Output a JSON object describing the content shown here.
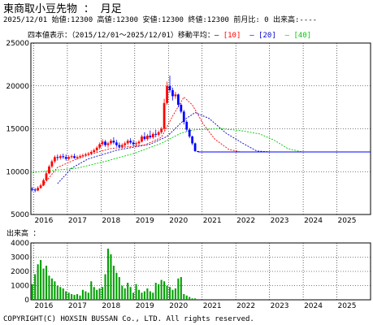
{
  "header": {
    "title": "東商取小豆先物 ： 月足",
    "quote_line": "2025/12/01 始値:12300 高値:12300 安値:12300 終値:12300 前月比: 0 出来高:----"
  },
  "legend": {
    "prefix": "四本値表示：（2015/12/01〜2025/12/01）移動平均：",
    "ma10": "[10]",
    "ma20": "[20]",
    "ma40": "[40]"
  },
  "volume_label": "出来高 ：",
  "copyright": "COPYRIGHT(C) HOXSIN BUSSAN Co., LTD. All rights reserved.",
  "colors": {
    "up": "#ff0000",
    "down": "#0000ff",
    "ma10": "#ff0000",
    "ma20": "#0000cc",
    "ma40": "#00cc00",
    "volume": "#00a000",
    "grid": "#000000"
  },
  "chart_data": [
    {
      "type": "candlestick",
      "title": "東商取小豆先物 月足",
      "x_start": "2015-12",
      "x_ticks": [
        "2016",
        "2017",
        "2018",
        "2019",
        "2020",
        "2021",
        "2022",
        "2023",
        "2024",
        "2025"
      ],
      "ylim": [
        5000,
        25000
      ],
      "yticks": [
        5000,
        10000,
        15000,
        20000,
        25000
      ],
      "grid": "dotted",
      "candles": [
        [
          8000,
          8200,
          7700,
          7900
        ],
        [
          7900,
          8100,
          7600,
          7800
        ],
        [
          7800,
          8300,
          7700,
          8100
        ],
        [
          8100,
          8600,
          8000,
          8400
        ],
        [
          8400,
          9200,
          8300,
          9000
        ],
        [
          9000,
          10000,
          8900,
          9800
        ],
        [
          9800,
          10800,
          9700,
          10600
        ],
        [
          10600,
          11400,
          10400,
          11200
        ],
        [
          11200,
          11900,
          11000,
          11700
        ],
        [
          11700,
          12000,
          11300,
          11600
        ],
        [
          11600,
          12000,
          11400,
          11800
        ],
        [
          11800,
          12100,
          11500,
          11700
        ],
        [
          11700,
          12000,
          11300,
          11500
        ],
        [
          11500,
          11900,
          11300,
          11700
        ],
        [
          11700,
          12000,
          11500,
          11800
        ],
        [
          11800,
          12100,
          11500,
          11600
        ],
        [
          11600,
          11900,
          11400,
          11700
        ],
        [
          11700,
          12000,
          11500,
          11800
        ],
        [
          11800,
          12100,
          11600,
          11900
        ],
        [
          11900,
          12200,
          11700,
          12000
        ],
        [
          12000,
          12300,
          11800,
          12100
        ],
        [
          12100,
          12500,
          11900,
          12300
        ],
        [
          12300,
          12700,
          12100,
          12500
        ],
        [
          12500,
          13000,
          12300,
          12800
        ],
        [
          12800,
          13400,
          12600,
          13200
        ],
        [
          13200,
          13800,
          13000,
          13500
        ],
        [
          13500,
          13700,
          12900,
          13100
        ],
        [
          13100,
          13500,
          12800,
          13300
        ],
        [
          13300,
          13800,
          13100,
          13600
        ],
        [
          13600,
          14000,
          13200,
          13400
        ],
        [
          13400,
          13700,
          12900,
          13100
        ],
        [
          13100,
          13400,
          12700,
          12900
        ],
        [
          12900,
          13300,
          12700,
          13100
        ],
        [
          13100,
          13500,
          12900,
          13300
        ],
        [
          13300,
          13800,
          13100,
          13600
        ],
        [
          13600,
          13900,
          13200,
          13400
        ],
        [
          13400,
          13700,
          13000,
          13200
        ],
        [
          13200,
          13500,
          12900,
          13300
        ],
        [
          13300,
          13700,
          13100,
          13500
        ],
        [
          13500,
          14300,
          13400,
          14100
        ],
        [
          14100,
          14600,
          13600,
          13800
        ],
        [
          13800,
          14400,
          13600,
          14200
        ],
        [
          14200,
          14800,
          13800,
          14000
        ],
        [
          14000,
          14600,
          13800,
          14400
        ],
        [
          14400,
          14900,
          14000,
          14300
        ],
        [
          14300,
          14800,
          14100,
          14600
        ],
        [
          14600,
          15200,
          14400,
          15000
        ],
        [
          15000,
          18500,
          14800,
          18000
        ],
        [
          18000,
          20500,
          17800,
          20000
        ],
        [
          20000,
          21200,
          19200,
          19500
        ],
        [
          19500,
          19800,
          18300,
          18800
        ],
        [
          18800,
          19300,
          18500,
          19000
        ],
        [
          19000,
          19100,
          17500,
          17800
        ],
        [
          17800,
          18000,
          16800,
          17000
        ],
        [
          17000,
          17200,
          15500,
          15800
        ],
        [
          15800,
          16000,
          14700,
          14900
        ],
        [
          14900,
          15100,
          13900,
          14100
        ],
        [
          14100,
          14200,
          13100,
          13300
        ],
        [
          13300,
          13400,
          12300,
          12400
        ],
        [
          12400,
          12400,
          12300,
          12300
        ]
      ],
      "flat_from_month": 59,
      "flat_value": 12300,
      "months_total": 121,
      "ma10": [
        [
          3,
          8100
        ],
        [
          9,
          10500
        ],
        [
          18,
          11800
        ],
        [
          28,
          12700
        ],
        [
          40,
          13100
        ],
        [
          46,
          14000
        ],
        [
          50,
          16500
        ],
        [
          54,
          18700
        ],
        [
          57,
          17800
        ],
        [
          61,
          15500
        ],
        [
          65,
          13800
        ],
        [
          70,
          12600
        ],
        [
          74,
          12300
        ],
        [
          120,
          12300
        ]
      ],
      "ma20": [
        [
          9,
          8600
        ],
        [
          14,
          10400
        ],
        [
          20,
          11500
        ],
        [
          30,
          12500
        ],
        [
          42,
          13200
        ],
        [
          48,
          14100
        ],
        [
          54,
          16000
        ],
        [
          58,
          16900
        ],
        [
          63,
          16200
        ],
        [
          69,
          14500
        ],
        [
          75,
          13300
        ],
        [
          80,
          12400
        ],
        [
          85,
          12300
        ],
        [
          120,
          12300
        ]
      ],
      "ma40": [
        [
          0,
          9900
        ],
        [
          6,
          10100
        ],
        [
          16,
          10400
        ],
        [
          26,
          11200
        ],
        [
          36,
          12100
        ],
        [
          46,
          13300
        ],
        [
          53,
          14500
        ],
        [
          58,
          14900
        ],
        [
          67,
          15000
        ],
        [
          74,
          14800
        ],
        [
          81,
          14400
        ],
        [
          86,
          13700
        ],
        [
          91,
          12700
        ],
        [
          96,
          12300
        ],
        [
          120,
          12300
        ]
      ]
    },
    {
      "type": "bar",
      "title": "出来高",
      "ylim": [
        0,
        4000
      ],
      "yticks": [
        0,
        1000,
        2000,
        3000,
        4000
      ],
      "x_ticks": [
        "2016",
        "2017",
        "2018",
        "2019",
        "2020",
        "2021",
        "2022",
        "2023",
        "2024",
        "2025"
      ],
      "values": [
        1100,
        1800,
        2500,
        2800,
        2200,
        2400,
        1700,
        1500,
        1300,
        1000,
        900,
        800,
        600,
        500,
        400,
        350,
        400,
        300,
        700,
        600,
        500,
        1300,
        900,
        700,
        800,
        900,
        1800,
        3600,
        3200,
        2400,
        1900,
        1600,
        1000,
        800,
        1200,
        900,
        500,
        1100,
        700,
        500,
        600,
        800,
        600,
        500,
        1200,
        1100,
        1400,
        1300,
        1000,
        900,
        700,
        800,
        1500,
        1600,
        400,
        300,
        200,
        100,
        100,
        0
      ]
    }
  ]
}
